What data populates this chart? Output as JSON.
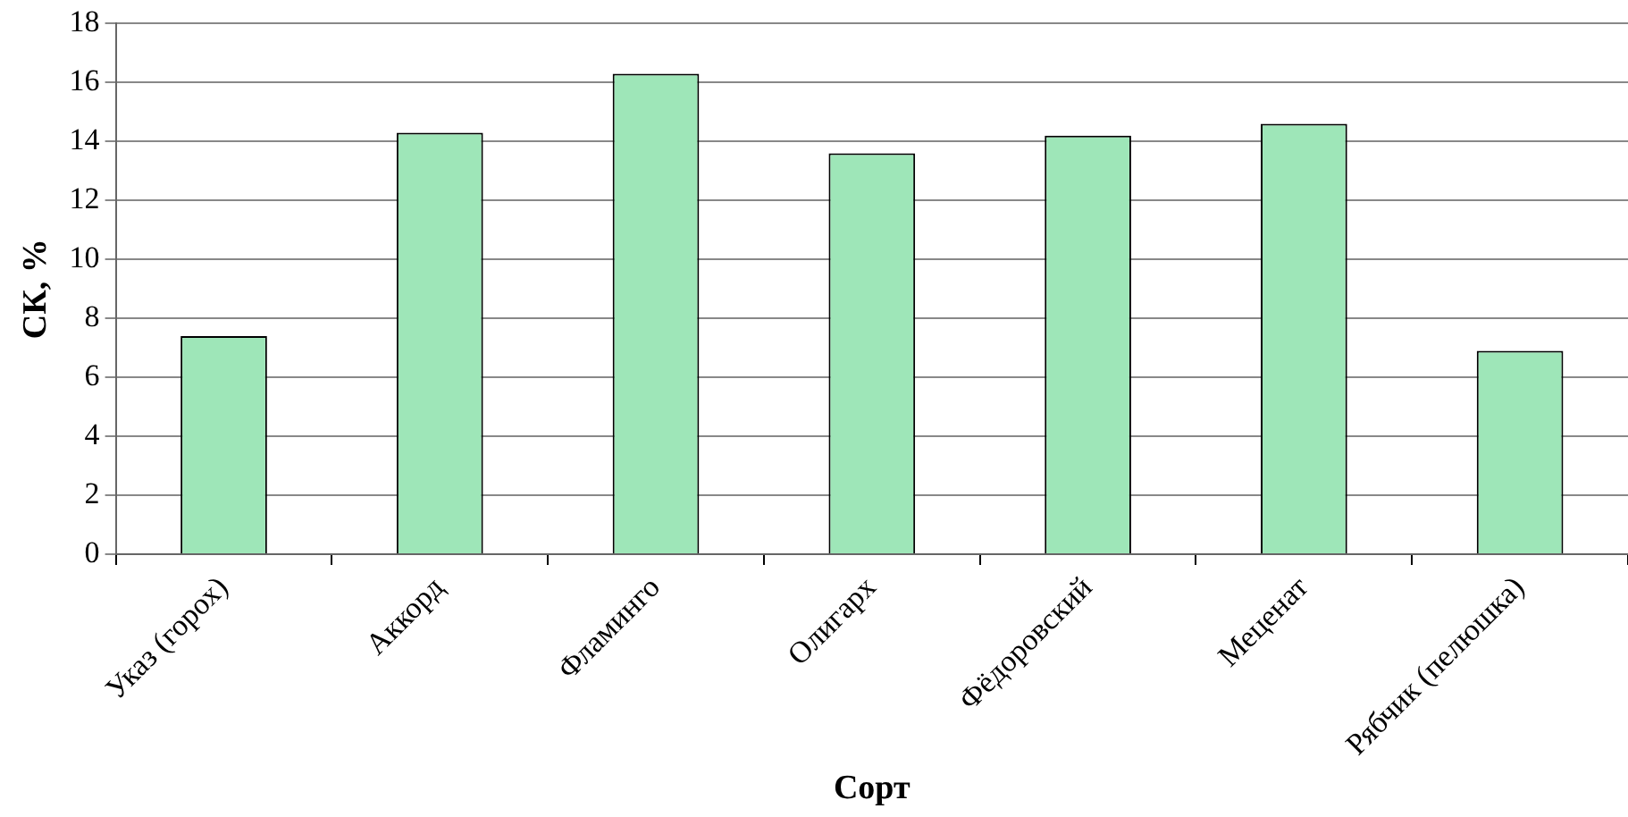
{
  "chart_data": {
    "type": "bar",
    "xlabel": "Сорт",
    "ylabel": "СК, %",
    "categories": [
      "Указ (горох)",
      "Аккорд",
      "Фламинго",
      "Олигарх",
      "Фёдоровский",
      "Меценат",
      "Рябчик (пелюшка)"
    ],
    "values": [
      7.4,
      14.3,
      16.3,
      13.6,
      14.2,
      14.6,
      6.9
    ],
    "color": "#9ee6b8",
    "ylim": [
      0,
      18
    ],
    "yticks": [
      0,
      2,
      4,
      6,
      8,
      10,
      12,
      14,
      16,
      18
    ],
    "grid": "y",
    "legend": false
  }
}
